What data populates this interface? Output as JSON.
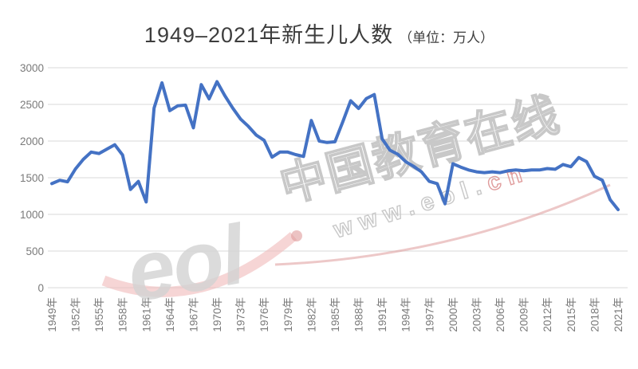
{
  "title": {
    "main": "1949–2021年新生儿人数",
    "unit": "（单位：万人）"
  },
  "watermark": {
    "brand_text": "中国教育在线",
    "url_text": "www.eol.",
    "url_suffix": "cn",
    "logo_text": "eol"
  },
  "colors": {
    "line": "#4472c4",
    "grid": "#d9d9d9",
    "axis_text": "#7a7a7a",
    "title_text": "#3d3d3d",
    "watermark_gray": "#c8c8c8",
    "watermark_red": "#df9b9b"
  },
  "chart_data": {
    "type": "line",
    "title": "1949–2021年新生儿人数",
    "unit": "万人",
    "xlabel": "",
    "ylabel": "",
    "ylim": [
      0,
      3000
    ],
    "grid": true,
    "legend": "none",
    "y_ticks": [
      0,
      500,
      1000,
      1500,
      2000,
      2500,
      3000
    ],
    "x_tick_step": 3,
    "x_tick_labels": [
      "1949年",
      "1952年",
      "1955年",
      "1958年",
      "1961年",
      "1964年",
      "1967年",
      "1970年",
      "1973年",
      "1976年",
      "1979年",
      "1982年",
      "1985年",
      "1988年",
      "1991年",
      "1994年",
      "1997年",
      "2000年",
      "2003年",
      "2006年",
      "2009年",
      "2012年",
      "2015年",
      "2018年",
      "2021年"
    ],
    "x": [
      1949,
      1950,
      1951,
      1952,
      1953,
      1954,
      1955,
      1956,
      1957,
      1958,
      1959,
      1960,
      1961,
      1962,
      1963,
      1964,
      1965,
      1966,
      1967,
      1968,
      1969,
      1970,
      1971,
      1972,
      1973,
      1974,
      1975,
      1976,
      1977,
      1978,
      1979,
      1980,
      1981,
      1982,
      1983,
      1984,
      1985,
      1986,
      1987,
      1988,
      1989,
      1990,
      1991,
      1992,
      1993,
      1994,
      1995,
      1996,
      1997,
      1998,
      1999,
      2000,
      2001,
      2002,
      2003,
      2004,
      2005,
      2006,
      2007,
      2008,
      2009,
      2010,
      2011,
      2012,
      2013,
      2014,
      2015,
      2016,
      2017,
      2018,
      2019,
      2020,
      2021
    ],
    "values": [
      1420,
      1465,
      1445,
      1620,
      1750,
      1850,
      1830,
      1890,
      1950,
      1810,
      1340,
      1450,
      1170,
      2450,
      2795,
      2415,
      2480,
      2490,
      2180,
      2770,
      2575,
      2810,
      2620,
      2450,
      2300,
      2200,
      2080,
      2010,
      1780,
      1850,
      1850,
      1815,
      1790,
      2280,
      2000,
      1980,
      1990,
      2265,
      2550,
      2445,
      2580,
      2635,
      2030,
      1875,
      1820,
      1720,
      1655,
      1580,
      1450,
      1420,
      1145,
      1690,
      1645,
      1605,
      1580,
      1570,
      1580,
      1570,
      1595,
      1605,
      1595,
      1605,
      1605,
      1625,
      1615,
      1680,
      1650,
      1775,
      1720,
      1520,
      1465,
      1200,
      1065
    ]
  }
}
